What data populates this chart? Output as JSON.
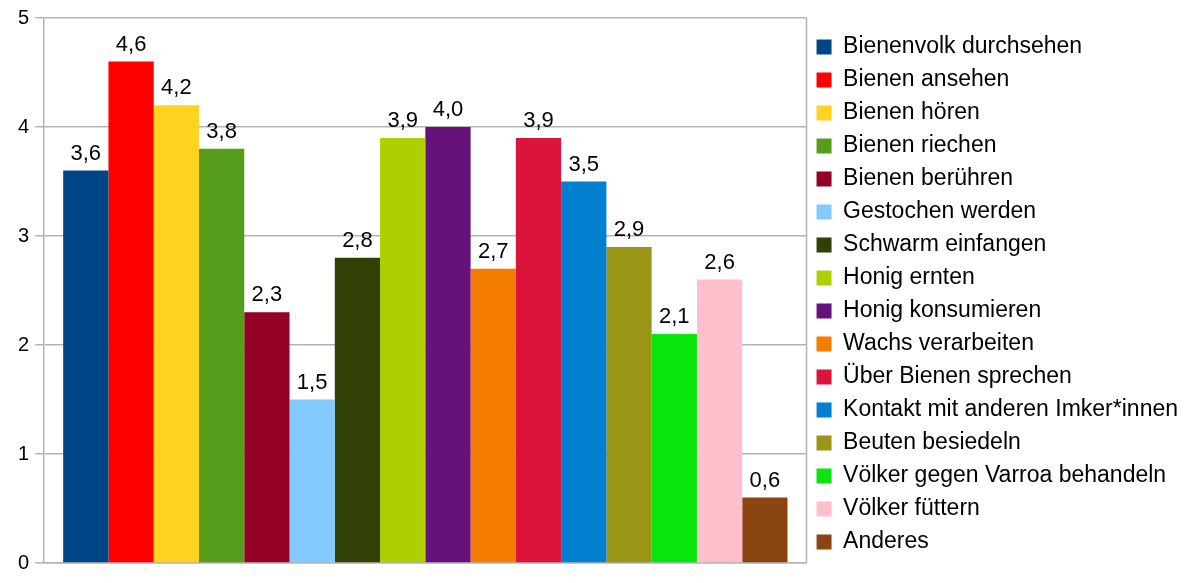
{
  "chart_data": {
    "type": "bar",
    "categories": [
      null
    ],
    "ylim": [
      0,
      5
    ],
    "yticks": [
      0,
      1,
      2,
      3,
      4,
      5
    ],
    "grid": "y",
    "legend": "right",
    "tick_labels": "y",
    "series": [
      {
        "name": "Bienenvolk durchsehen",
        "color": "#004586",
        "values": [
          3.6
        ],
        "value_labels": [
          "3,6"
        ]
      },
      {
        "name": "Bienen ansehen",
        "color": "#ff0000",
        "values": [
          4.6
        ],
        "value_labels": [
          "4,6"
        ]
      },
      {
        "name": "Bienen hören",
        "color": "#ffd320",
        "values": [
          4.2
        ],
        "value_labels": [
          "4,2"
        ]
      },
      {
        "name": "Bienen riechen",
        "color": "#579d1c",
        "values": [
          3.8
        ],
        "value_labels": [
          "3,8"
        ]
      },
      {
        "name": "Bienen berühren",
        "color": "#950026",
        "values": [
          2.3
        ],
        "value_labels": [
          "2,3"
        ]
      },
      {
        "name": "Gestochen werden",
        "color": "#83caff",
        "values": [
          1.5
        ],
        "value_labels": [
          "1,5"
        ]
      },
      {
        "name": "Schwarm einfangen",
        "color": "#314004",
        "values": [
          2.8
        ],
        "value_labels": [
          "2,8"
        ]
      },
      {
        "name": "Honig ernten",
        "color": "#aecf00",
        "values": [
          3.9
        ],
        "value_labels": [
          "3,9"
        ]
      },
      {
        "name": "Honig konsumieren",
        "color": "#65137a",
        "values": [
          4.0
        ],
        "value_labels": [
          "4,0"
        ]
      },
      {
        "name": "Wachs verarbeiten",
        "color": "#f47c00",
        "values": [
          2.7
        ],
        "value_labels": [
          "2,7"
        ]
      },
      {
        "name": "Über Bienen sprechen",
        "color": "#dc143c",
        "values": [
          3.9
        ],
        "value_labels": [
          "3,9"
        ]
      },
      {
        "name": "Kontakt mit anderen Imker*innen",
        "color": "#0080cf",
        "values": [
          3.5
        ],
        "value_labels": [
          "3,5"
        ]
      },
      {
        "name": "Beuten besiedeln",
        "color": "#989614",
        "values": [
          2.9
        ],
        "value_labels": [
          "2,9"
        ]
      },
      {
        "name": "Völker gegen Varroa behandeln",
        "color": "#0ae50e",
        "values": [
          2.1
        ],
        "value_labels": [
          "2,1"
        ]
      },
      {
        "name": "Völker füttern",
        "color": "#ffc0cb",
        "values": [
          2.6
        ],
        "value_labels": [
          "2,6"
        ]
      },
      {
        "name": "Anderes",
        "color": "#8b4513",
        "values": [
          0.6
        ],
        "value_labels": [
          "0,6"
        ]
      }
    ]
  }
}
